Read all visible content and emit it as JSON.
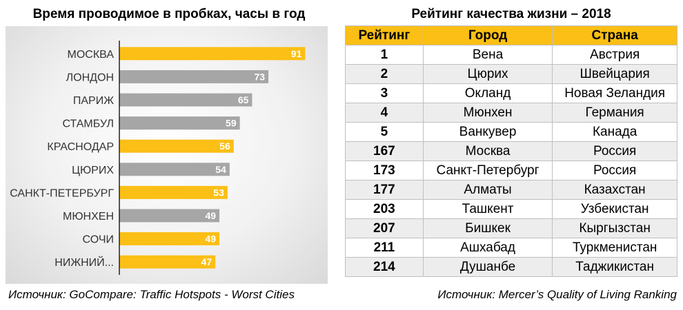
{
  "left_title": "Время проводимое в пробках, часы в год",
  "left_source": "Источник: GoCompare: Traffic Hotspots - Worst Cities",
  "right_title": "Рейтинг качества жизни – 2018",
  "right_source": "Источник: Mercer’s Quality of Living Ranking",
  "colors": {
    "highlight": "#fbbf15",
    "normal": "#a6a6a6",
    "axis": "#222222"
  },
  "chart_data": {
    "type": "bar",
    "orientation": "horizontal",
    "title": "Время проводимое в пробках, часы в год",
    "categories": [
      "МОСКВА",
      "ЛОНДОН",
      "ПАРИЖ",
      "СТАМБУЛ",
      "КРАСНОДАР",
      "ЦЮРИХ",
      "САНКТ-ПЕТЕРБУРГ",
      "МЮНХЕН",
      "СОЧИ",
      "НИЖНИЙ..."
    ],
    "values": [
      91,
      73,
      65,
      59,
      56,
      54,
      53,
      49,
      49,
      47
    ],
    "highlighted": [
      true,
      false,
      false,
      false,
      true,
      false,
      true,
      false,
      true,
      true
    ],
    "xlim": [
      0,
      100
    ],
    "grid": false,
    "data_labels": true
  },
  "table": {
    "headers": [
      "Рейтинг",
      "Город",
      "Страна"
    ],
    "rows": [
      [
        "1",
        "Вена",
        "Австрия"
      ],
      [
        "2",
        "Цюрих",
        "Швейцария"
      ],
      [
        "3",
        "Окланд",
        "Новая Зеландия"
      ],
      [
        "4",
        "Мюнхен",
        "Германия"
      ],
      [
        "5",
        "Ванкувер",
        "Канада"
      ],
      [
        "167",
        "Москва",
        "Россия"
      ],
      [
        "173",
        "Санкт-Петербург",
        "Россия"
      ],
      [
        "177",
        "Алматы",
        "Казахстан"
      ],
      [
        "203",
        "Ташкент",
        "Узбекистан"
      ],
      [
        "207",
        "Бишкек",
        "Кыргызстан"
      ],
      [
        "211",
        "Ашхабад",
        "Туркменистан"
      ],
      [
        "214",
        "Душанбе",
        "Таджикистан"
      ]
    ]
  }
}
